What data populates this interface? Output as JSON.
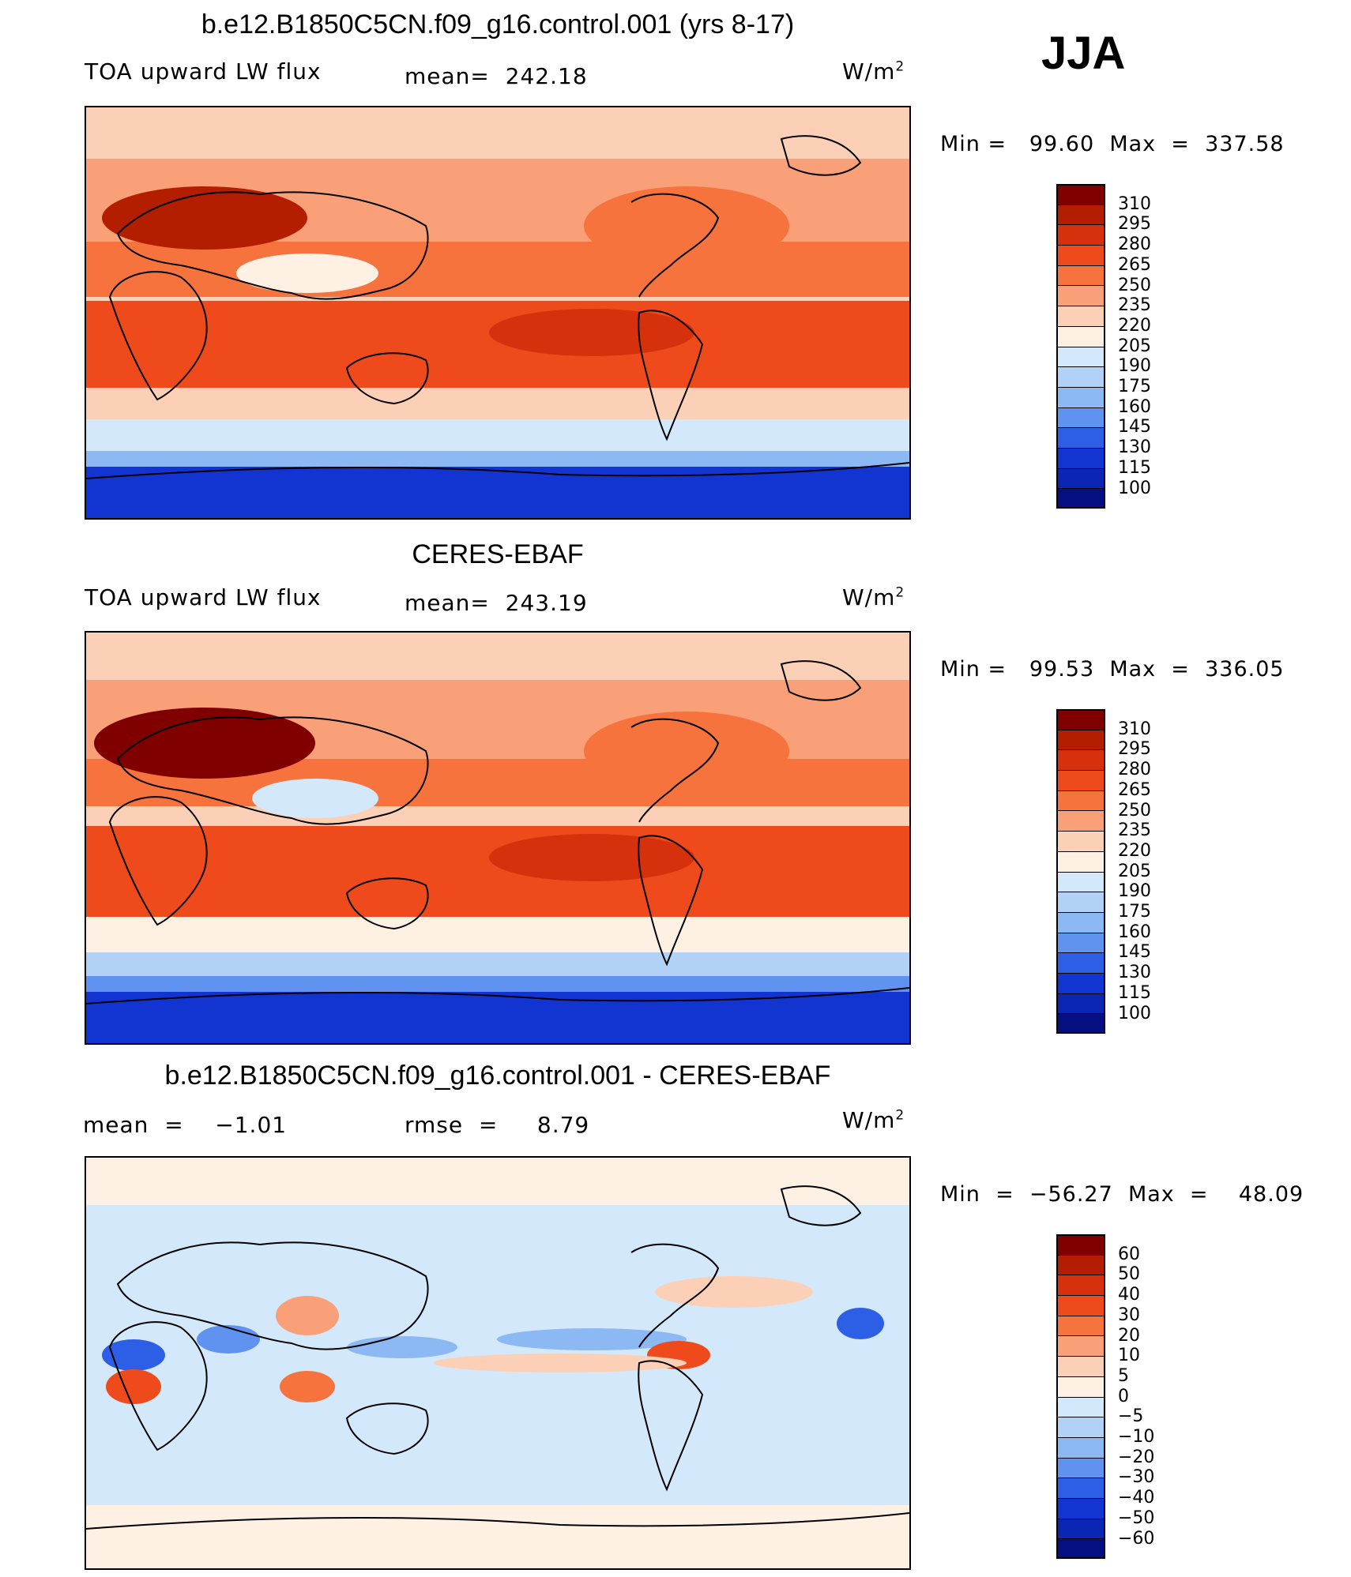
{
  "season": "JJA",
  "panels": [
    {
      "title": "b.e12.B1850C5CN.f09_g16.control.001 (yrs 8-17)",
      "left_label": "TOA upward LW flux",
      "center_label": "mean=  242.18",
      "units": "W/m",
      "units_sup": "2",
      "minmax": "Min =   99.60  Max  =  337.58"
    },
    {
      "title": "CERES-EBAF",
      "left_label": "TOA upward LW flux",
      "center_label": "mean=  243.19",
      "units": "W/m",
      "units_sup": "2",
      "minmax": "Min =   99.53  Max  =  336.05"
    },
    {
      "title": "b.e12.B1850C5CN.f09_g16.control.001 - CERES-EBAF",
      "left_label": "mean  =    −1.01",
      "center_label": "rmse  =     8.79",
      "units": "W/m",
      "units_sup": "2",
      "minmax": "Min  =  −56.27  Max  =    48.09"
    }
  ],
  "colorbars": [
    {
      "labels": [
        "310",
        "295",
        "280",
        "265",
        "250",
        "235",
        "220",
        "205",
        "190",
        "175",
        "160",
        "145",
        "130",
        "115",
        "100"
      ],
      "colors": [
        "#800000",
        "#b41e00",
        "#d7300c",
        "#ef4a1c",
        "#f7733d",
        "#f9a079",
        "#fcd0b6",
        "#fff0e4",
        "#d3e8fa",
        "#b1d1f7",
        "#8cb8f4",
        "#5f93ef",
        "#2c5fe6",
        "#1235d2",
        "#0b26b2",
        "#050f82"
      ]
    },
    {
      "labels": [
        "310",
        "295",
        "280",
        "265",
        "250",
        "235",
        "220",
        "205",
        "190",
        "175",
        "160",
        "145",
        "130",
        "115",
        "100"
      ],
      "colors": [
        "#800000",
        "#b41e00",
        "#d7300c",
        "#ef4a1c",
        "#f7733d",
        "#f9a079",
        "#fcd0b6",
        "#fff0e4",
        "#d3e8fa",
        "#b1d1f7",
        "#8cb8f4",
        "#5f93ef",
        "#2c5fe6",
        "#1235d2",
        "#0b26b2",
        "#050f82"
      ]
    },
    {
      "labels": [
        "60",
        "50",
        "40",
        "30",
        "20",
        "10",
        "5",
        "0",
        "−5",
        "−10",
        "−20",
        "−30",
        "−40",
        "−50",
        "−60"
      ],
      "colors": [
        "#800000",
        "#b41e00",
        "#d7300c",
        "#ef4a1c",
        "#f7733d",
        "#f9a079",
        "#fcd0b6",
        "#fff0e4",
        "#d3e8fa",
        "#b1d1f7",
        "#8cb8f4",
        "#5f93ef",
        "#2c5fe6",
        "#1235d2",
        "#0b26b2",
        "#050f82"
      ]
    }
  ]
}
